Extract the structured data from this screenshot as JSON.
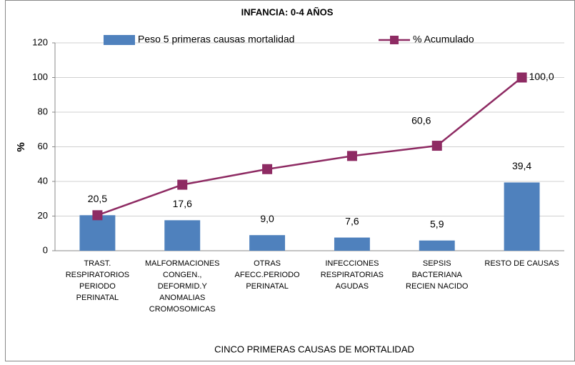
{
  "chart_data": {
    "type": "bar_line",
    "title": "INFANCIA: 0-4 AÑOS",
    "y_label": "%",
    "x_label": "CINCO PRIMERAS CAUSAS DE MORTALIDAD",
    "categories": [
      "TRAST.\nRESPIRATORIOS\nPERIODO\nPERINATAL",
      "MALFORMACIONES\nCONGEN.,\nDEFORMID.Y\nANOMALIAS\nCROMOSOMICAS",
      "OTRAS\nAFECC.PERIODO\nPERINATAL",
      "INFECCIONES\nRESPIRATORIAS\nAGUDAS",
      "SEPSIS\nBACTERIANA\nRECIEN NACIDO",
      "RESTO DE CAUSAS"
    ],
    "series": [
      {
        "name": "Peso 5 primeras causas mortalidad",
        "kind": "bar",
        "color": "#4f81bd",
        "values": [
          20.5,
          17.6,
          9.0,
          7.6,
          5.9,
          39.4
        ],
        "value_labels": [
          "20,5",
          "17,6",
          "9,0",
          "7,6",
          "5,9",
          "39,4"
        ]
      },
      {
        "name": "% Acumulado",
        "kind": "line",
        "color": "#8e2b63",
        "values": [
          20.5,
          38.1,
          47.1,
          54.7,
          60.6,
          100.0
        ],
        "value_labels": [
          null,
          null,
          null,
          null,
          "60,6",
          "100,0"
        ]
      }
    ],
    "ylim": [
      0,
      120
    ],
    "yticks": [
      0,
      20,
      40,
      60,
      80,
      100,
      120
    ],
    "grid": true
  }
}
